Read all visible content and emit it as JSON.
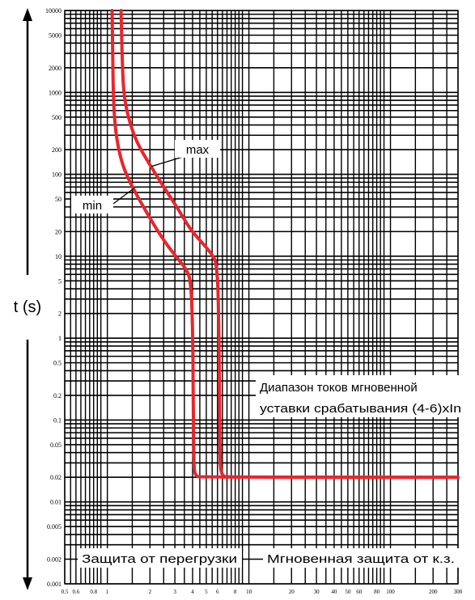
{
  "chart_data": {
    "type": "line",
    "ylabel": "t (s)",
    "xlabel": "",
    "x_scale": "log",
    "y_scale": "log",
    "xlim": [
      0.5,
      300
    ],
    "ylim": [
      0.001,
      10000
    ],
    "grid": true,
    "x_ticks": [
      0.5,
      0.6,
      0.8,
      1,
      2,
      3,
      4,
      5,
      6,
      8,
      10,
      20,
      30,
      40,
      50,
      60,
      80,
      100,
      200,
      300
    ],
    "x_tick_labels": [
      "0.5",
      "0.6",
      "0.8",
      "1",
      "2",
      "3",
      "4",
      "5",
      "6",
      "8",
      "10",
      "20",
      "30",
      "40",
      "50",
      "60",
      "80",
      "100",
      "200",
      "300"
    ],
    "y_ticks": [
      10000,
      5000,
      2000,
      1000,
      500,
      200,
      100,
      50,
      20,
      10,
      5,
      2,
      1,
      0.5,
      0.2,
      0.1,
      0.05,
      0.02,
      0.01,
      0.005,
      0.002,
      0.001
    ],
    "y_tick_labels": [
      "10000",
      "5000",
      "2000",
      "1000",
      "500",
      "200",
      "100",
      "50",
      "20",
      "10",
      "5",
      "2",
      "1",
      "0.5",
      "0.2",
      "0.1",
      "0.05",
      "0.02",
      "0.01",
      "0.005",
      "0.002",
      "0.001"
    ],
    "series": [
      {
        "name": "min",
        "color": "#e8262c",
        "x": [
          1.08,
          1.09,
          1.1,
          1.13,
          1.2,
          1.3,
          1.5,
          1.8,
          2.2,
          2.7,
          3.2,
          3.6,
          3.9,
          4.02,
          4.05,
          4.08,
          4.1,
          4.2,
          4.5,
          300
        ],
        "y": [
          10000,
          3000,
          1000,
          400,
          200,
          120,
          70,
          40,
          22,
          13,
          9,
          7,
          5,
          1,
          0.1,
          0.04,
          0.025,
          0.021,
          0.02,
          0.02
        ]
      },
      {
        "name": "max",
        "color": "#e8262c",
        "x": [
          1.25,
          1.27,
          1.3,
          1.4,
          1.6,
          2.0,
          2.5,
          3.1,
          3.8,
          4.6,
          5.4,
          6.0,
          6.15,
          6.2,
          6.25,
          6.3,
          6.5,
          7.0,
          300
        ],
        "y": [
          10000,
          3000,
          1000,
          500,
          250,
          130,
          70,
          40,
          22,
          15,
          11,
          8,
          1,
          0.1,
          0.04,
          0.025,
          0.021,
          0.02,
          0.02
        ]
      }
    ],
    "annotations": {
      "max": "max",
      "min": "min",
      "range_line1": "Диапазон токов мгновенной",
      "range_line2": "уставки срабатывания (4-6)xIn",
      "overload": "Защита от перегрузки",
      "instant": "Мгновенная защита от к.з."
    }
  }
}
